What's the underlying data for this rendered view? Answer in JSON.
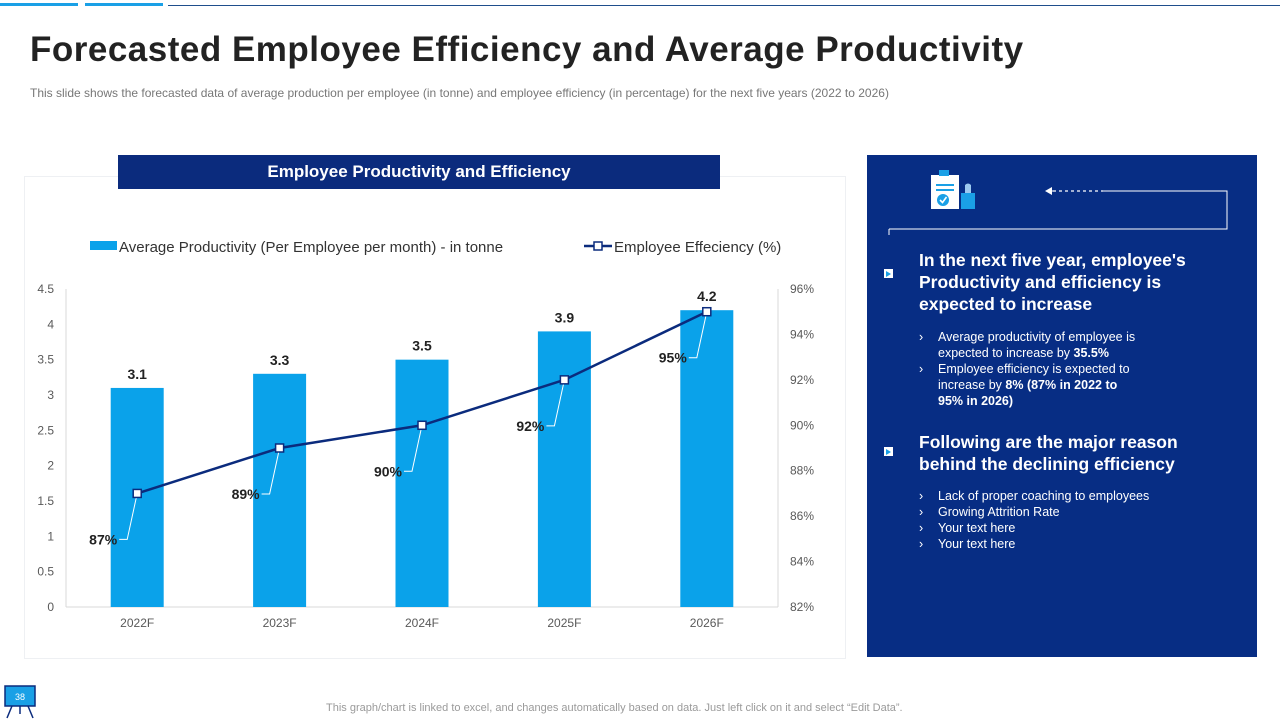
{
  "title": "Forecasted Employee Efficiency and Average Productivity",
  "subtitle": "This slide shows the forecasted data of average production per employee (in tonne) and employee efficiency (in percentage) for the next five years (2022 to 2026)",
  "footnote": "This graph/chart is linked to excel, and changes automatically based on data. Just left click on it and select “Edit Data”.",
  "slide_number": "38",
  "colors": {
    "navy": "#072d84",
    "accent": "#1aa0e6",
    "line": "#0b2b7d"
  },
  "chart_data": {
    "type": "bar",
    "title": "Employee Productivity and Efficiency",
    "categories": [
      "2022F",
      "2023F",
      "2024F",
      "2025F",
      "2026F"
    ],
    "series": [
      {
        "name": "Average Productivity (Per Employee per month) - in tonne",
        "kind": "bar",
        "axis": "left",
        "values": [
          3.1,
          3.3,
          3.5,
          3.9,
          4.2
        ],
        "labels": [
          "3.1",
          "3.3",
          "3.5",
          "3.9",
          "4.2"
        ]
      },
      {
        "name": "Employee Effeciency (%)",
        "kind": "line",
        "axis": "right",
        "values": [
          87,
          89,
          90,
          92,
          95
        ],
        "labels": [
          "87%",
          "89%",
          "90%",
          "92%",
          "95%"
        ]
      }
    ],
    "y_left": {
      "min": 0,
      "max": 4.5,
      "ticks": [
        "0",
        "0.5",
        "1",
        "1.5",
        "2",
        "2.5",
        "3",
        "3.5",
        "4",
        "4.5"
      ]
    },
    "y_right": {
      "min": 82,
      "max": 96,
      "ticks": [
        "82%",
        "84%",
        "86%",
        "88%",
        "90%",
        "92%",
        "94%",
        "96%"
      ]
    },
    "legend_position": "top"
  },
  "info": {
    "heading1": "In the next five year, employee's Productivity and efficiency is expected to increase",
    "points1": [
      {
        "pre": "Average productivity of employee is expected to increase by ",
        "bold": "35.5%",
        "post": ""
      },
      {
        "pre": "Employee efficiency is expected to increase by ",
        "bold": "8% (87% in 2022 to 95% in 2026)",
        "post": ""
      }
    ],
    "heading2": "Following are the major reason behind the declining efficiency",
    "points2": [
      "Lack of proper coaching to employees",
      "Growing Attrition Rate",
      "Your text here",
      "Your text here"
    ]
  }
}
